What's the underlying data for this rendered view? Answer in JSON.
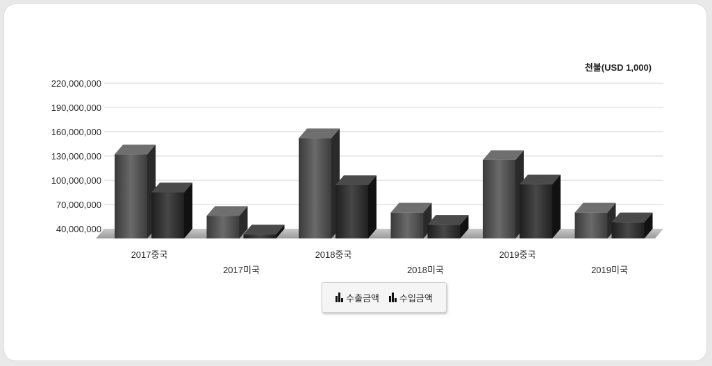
{
  "chart_data": {
    "type": "bar",
    "unit_label": "천불(USD 1,000)",
    "categories": [
      "2017중국",
      "2017미국",
      "2018중국",
      "2018미국",
      "2019중국",
      "2019미국"
    ],
    "series": [
      {
        "name": "수출금액",
        "values": [
          132000000,
          56000000,
          152000000,
          60000000,
          125000000,
          60000000
        ],
        "color": "#555555"
      },
      {
        "name": "수입금액",
        "values": [
          85000000,
          33000000,
          94000000,
          45000000,
          95000000,
          48000000
        ],
        "color": "#2e2e2e"
      }
    ],
    "yticks": [
      "40,000,000",
      "70,000,000",
      "100,000,000",
      "130,000,000",
      "160,000,000",
      "190,000,000",
      "220,000,000"
    ],
    "ylim": [
      40000000,
      220000000
    ],
    "grid": true,
    "legend_position": "bottom-center"
  },
  "legend": {
    "items": [
      {
        "label": "수출금액",
        "icon": "bar-chart-icon"
      },
      {
        "label": "수입금액",
        "icon": "bar-chart-icon"
      }
    ]
  }
}
